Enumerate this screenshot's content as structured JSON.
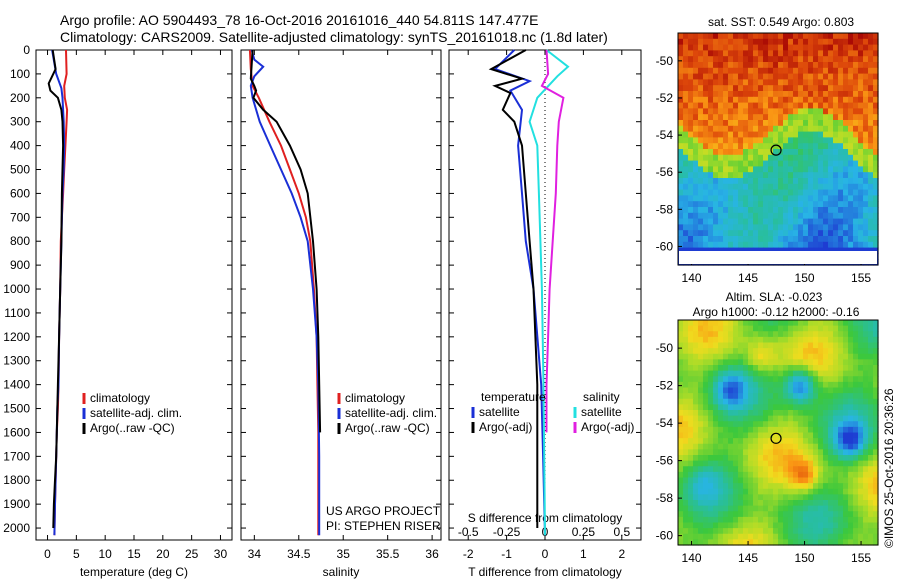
{
  "header": {
    "line1": "Argo profile: AO 5904493_78 16-Oct-2016 20161016_440 54.811S 147.477E",
    "line2": "Climatology: CARS2009. Satellite-adjusted climatology: synTS_20161018.nc (1.8d later)"
  },
  "stamp": "©IMOS 25-Oct-2016 20:36:26",
  "colors": {
    "climatology": "#e02020",
    "satellite": "#1a2fd6",
    "argo": "#000000",
    "sat_sal": "#22e0e0",
    "argo_sal": "#e020e0"
  },
  "chart_data": [
    {
      "type": "line",
      "id": "temperature",
      "xlabel": "temperature (deg C)",
      "xlim": [
        -2,
        32
      ],
      "xticks": [
        0,
        5,
        10,
        15,
        20,
        25,
        30
      ],
      "ylim": [
        0,
        2050
      ],
      "yticks": [
        0,
        100,
        200,
        300,
        400,
        500,
        600,
        700,
        800,
        900,
        1000,
        1100,
        1200,
        1300,
        1400,
        1500,
        1600,
        1700,
        1800,
        1900,
        2000
      ],
      "legend": [
        "climatology",
        "satellite-adj. clim.",
        "Argo(..raw -QC)"
      ],
      "series": [
        {
          "name": "climatology",
          "color": "#e02020",
          "x": [
            3.2,
            3.3,
            2.9,
            3.0,
            3.4,
            3.3,
            3.1,
            2.9,
            2.7,
            2.5,
            2.3,
            2.2,
            2.0,
            1.9,
            1.8,
            1.6,
            1.5,
            1.4,
            1.3,
            1.2
          ],
          "y": [
            0,
            100,
            150,
            200,
            250,
            300,
            400,
            500,
            600,
            700,
            800,
            1000,
            1200,
            1400,
            1500,
            1600,
            1700,
            1800,
            1900,
            2030
          ]
        },
        {
          "name": "satellite-adj. clim.",
          "color": "#1a2fd6",
          "x": [
            0.8,
            1.5,
            2.4,
            2.6,
            2.8,
            2.9,
            2.8,
            2.6,
            2.5,
            2.4,
            2.2,
            2.0,
            1.9,
            1.7,
            1.6,
            1.5,
            1.4,
            1.3,
            1.2
          ],
          "y": [
            0,
            100,
            160,
            200,
            300,
            400,
            500,
            600,
            700,
            800,
            1000,
            1200,
            1400,
            1500,
            1600,
            1700,
            1800,
            1900,
            2030
          ]
        },
        {
          "name": "Argo(..raw -QC)",
          "color": "#000000",
          "x": [
            0.9,
            1.4,
            0.2,
            0.5,
            1.8,
            2.4,
            2.6,
            2.7,
            2.6,
            2.5,
            2.4,
            2.2,
            2.0,
            1.8,
            1.6,
            1.5,
            1.3,
            1.1,
            1.0
          ],
          "y": [
            0,
            80,
            140,
            170,
            200,
            250,
            300,
            400,
            500,
            600,
            800,
            1000,
            1200,
            1400,
            1600,
            1700,
            1800,
            1900,
            2000
          ]
        }
      ]
    },
    {
      "type": "line",
      "id": "salinity",
      "xlabel": "salinity",
      "xlim": [
        33.85,
        36.1
      ],
      "xticks": [
        34,
        34.5,
        35,
        35.5,
        36
      ],
      "ylim": [
        0,
        2050
      ],
      "legend": [
        "climatology",
        "satellite-adj. clim.",
        "Argo(..raw -QC)"
      ],
      "annotation": [
        "US ARGO PROJECT",
        "PI: STEPHEN RISER"
      ],
      "series": [
        {
          "name": "climatology",
          "color": "#e02020",
          "x": [
            33.95,
            33.96,
            33.98,
            34.05,
            34.17,
            34.3,
            34.4,
            34.5,
            34.58,
            34.63,
            34.67,
            34.7,
            34.71,
            34.72,
            34.72,
            34.72
          ],
          "y": [
            0,
            80,
            150,
            200,
            300,
            400,
            500,
            600,
            700,
            800,
            1000,
            1200,
            1400,
            1600,
            1800,
            2030
          ]
        },
        {
          "name": "satellite-adj. clim.",
          "color": "#1a2fd6",
          "x": [
            33.97,
            34.0,
            34.1,
            34.0,
            33.96,
            33.98,
            34.06,
            34.18,
            34.3,
            34.42,
            34.52,
            34.6,
            34.66,
            34.7,
            34.72,
            34.73,
            34.73
          ],
          "y": [
            0,
            40,
            70,
            110,
            150,
            200,
            300,
            400,
            500,
            600,
            700,
            800,
            1000,
            1200,
            1400,
            1700,
            2030
          ]
        },
        {
          "name": "Argo(..raw -QC)",
          "color": "#000000",
          "x": [
            33.98,
            33.97,
            33.96,
            34.0,
            34.02,
            33.99,
            34.1,
            34.25,
            34.4,
            34.52,
            34.6,
            34.66,
            34.7,
            34.72,
            34.73,
            34.74
          ],
          "y": [
            0,
            60,
            120,
            150,
            170,
            200,
            250,
            300,
            400,
            500,
            600,
            800,
            1000,
            1200,
            1400,
            1600
          ]
        }
      ]
    },
    {
      "type": "line",
      "id": "difference",
      "xlabel": "T difference from climatology",
      "xlabel2": "S difference from climatology",
      "xlim": [
        -2.5,
        2.5
      ],
      "xticks": [
        -2,
        -1,
        0,
        1,
        2
      ],
      "xlim2": [
        -0.625,
        0.625
      ],
      "xticks2": [
        -0.5,
        -0.25,
        0,
        0.25,
        0.5
      ],
      "ylim": [
        0,
        2050
      ],
      "legend_temperature": {
        "title": "temperature",
        "items": [
          "satellite",
          "Argo(-adj)"
        ]
      },
      "legend_salinity": {
        "title": "salinity",
        "items": [
          "satellite",
          "Argo(-adj)"
        ]
      },
      "series": [
        {
          "name": "temperature satellite",
          "color": "#1a2fd6",
          "axis": "T",
          "x": [
            -0.8,
            -1.3,
            -0.4,
            -0.9,
            -0.6,
            -0.7,
            -0.6,
            -0.5,
            -0.3,
            -0.1,
            -0.05,
            0.0
          ],
          "y": [
            0,
            80,
            130,
            170,
            250,
            400,
            600,
            800,
            1000,
            1400,
            1700,
            2030
          ]
        },
        {
          "name": "temperature Argo(-adj)",
          "color": "#000000",
          "axis": "T",
          "x": [
            -0.5,
            -1.4,
            -0.6,
            -1.3,
            -0.9,
            -1.1,
            -0.8,
            -0.6,
            -0.5,
            -0.4,
            -0.3,
            -0.25,
            -0.2,
            -0.2
          ],
          "y": [
            0,
            80,
            120,
            150,
            180,
            250,
            300,
            400,
            600,
            800,
            1000,
            1200,
            1400,
            2000
          ]
        },
        {
          "name": "salinity satellite",
          "color": "#22e0e0",
          "axis": "S",
          "x": [
            0.01,
            0.15,
            0.08,
            -0.05,
            -0.1,
            -0.05,
            -0.04,
            -0.03,
            -0.02,
            -0.01,
            0.0
          ],
          "y": [
            0,
            70,
            110,
            200,
            300,
            400,
            600,
            800,
            1000,
            1400,
            2030
          ]
        },
        {
          "name": "salinity Argo(-adj)",
          "color": "#e020e0",
          "axis": "S",
          "x": [
            0.01,
            0.02,
            -0.02,
            0.12,
            0.09,
            0.08,
            0.07,
            0.05,
            0.03,
            0.02,
            0.01,
            0.01
          ],
          "y": [
            0,
            100,
            150,
            200,
            300,
            400,
            600,
            800,
            1000,
            1200,
            1400,
            1600
          ]
        }
      ]
    },
    {
      "type": "heatmap",
      "id": "sst_map",
      "title": "sat. SST: 0.549 Argo: 0.803",
      "xlim": [
        138.8,
        156.5
      ],
      "xticks": [
        140,
        145,
        150,
        155
      ],
      "ylim": [
        -61,
        -48.5
      ],
      "yticks": [
        -50,
        -52,
        -54,
        -56,
        -58,
        -60
      ],
      "marker": {
        "lon": 147.477,
        "lat": -54.811
      }
    },
    {
      "type": "heatmap",
      "id": "sla_map",
      "title": "Altim. SLA: -0.023",
      "title2": "Argo h1000: -0.12 h2000: -0.16",
      "xlim": [
        138.8,
        156.5
      ],
      "xticks": [
        140,
        145,
        150,
        155
      ],
      "ylim": [
        -60.5,
        -48.5
      ],
      "yticks": [
        -50,
        -52,
        -54,
        -56,
        -58,
        -60
      ],
      "marker": {
        "lon": 147.477,
        "lat": -54.811
      }
    }
  ]
}
